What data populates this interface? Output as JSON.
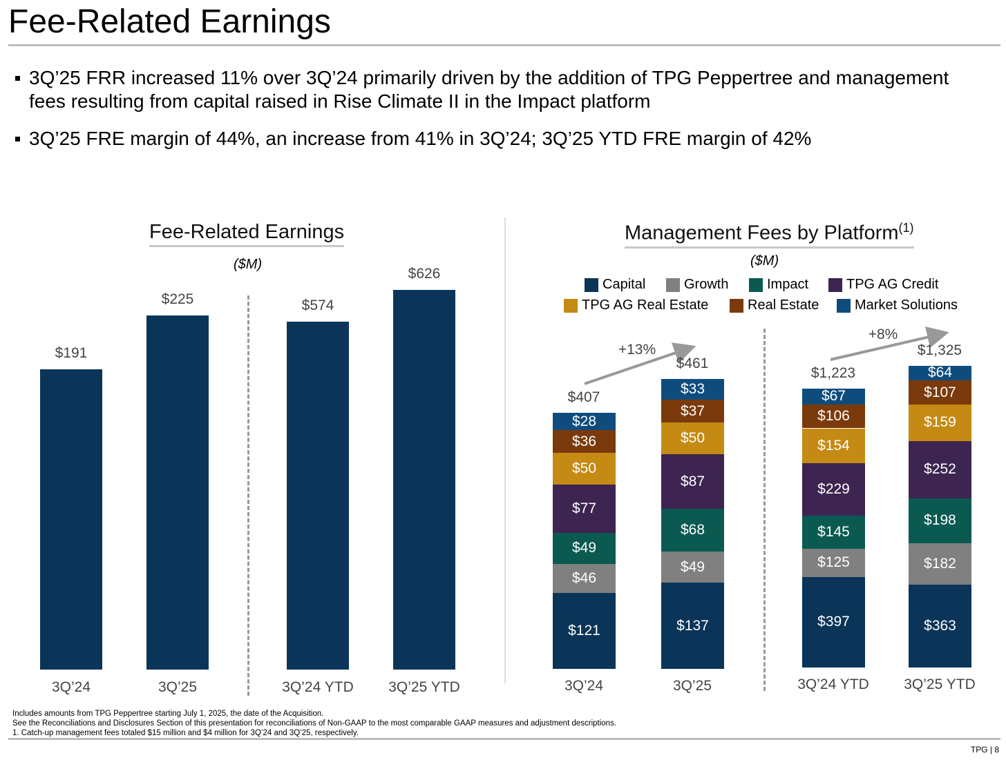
{
  "title": "Fee-Related Earnings",
  "bullets": [
    "3Q’25 FRR increased 11% over 3Q’24 primarily driven by the addition of TPG Peppertree and management fees resulting from capital raised in Rise Climate II in the Impact platform",
    "3Q’25 FRE margin of 44%, an increase from 41% in 3Q’24; 3Q’25 YTD FRE margin of 42%"
  ],
  "footnotes": [
    "Includes amounts from TPG Peppertree starting July 1, 2025, the date of the Acquisition.",
    "See the Reconciliations and Disclosures Section of this presentation for reconciliations of Non-GAAP to the most comparable GAAP measures and adjustment descriptions.",
    "1. Catch-up management fees totaled $15 million and $4 million for 3Q’24 and 3Q’25, respectively."
  ],
  "page_number": "TPG | 8",
  "chart_data": [
    {
      "type": "bar",
      "title": "Fee-Related Earnings",
      "unit": "($M)",
      "categories": [
        "3Q’24",
        "3Q’25",
        "3Q’24 YTD",
        "3Q’25 YTD"
      ],
      "values": [
        191,
        225,
        574,
        626
      ],
      "labels": [
        "$191",
        "$225",
        "$574",
        "$626"
      ],
      "color": "#0b3558"
    },
    {
      "type": "stacked-bar",
      "title": "Management Fees by Platform",
      "title_sup": "(1)",
      "unit": "($M)",
      "categories": [
        "3Q’24",
        "3Q’25",
        "3Q’24 YTD",
        "3Q’25 YTD"
      ],
      "totals": [
        "$407",
        "$461",
        "$1,223",
        "$1,325"
      ],
      "growth": [
        "+13%",
        "+8%"
      ],
      "series": [
        {
          "name": "Capital",
          "color": "#0b3558",
          "values": [
            121,
            137,
            397,
            363
          ]
        },
        {
          "name": "Growth",
          "color": "#808080",
          "values": [
            46,
            49,
            125,
            182
          ]
        },
        {
          "name": "Impact",
          "color": "#0b5a52",
          "values": [
            49,
            68,
            145,
            198
          ]
        },
        {
          "name": "TPG AG Credit",
          "color": "#3d2451",
          "values": [
            77,
            87,
            229,
            252
          ]
        },
        {
          "name": "TPG AG Real Estate",
          "color": "#c48a14",
          "values": [
            50,
            50,
            154,
            159
          ]
        },
        {
          "name": "Real Estate",
          "color": "#7a3a0b",
          "values": [
            36,
            37,
            106,
            107
          ]
        },
        {
          "name": "Market Solutions",
          "color": "#0f4c7e",
          "values": [
            28,
            33,
            67,
            64
          ]
        }
      ]
    }
  ]
}
